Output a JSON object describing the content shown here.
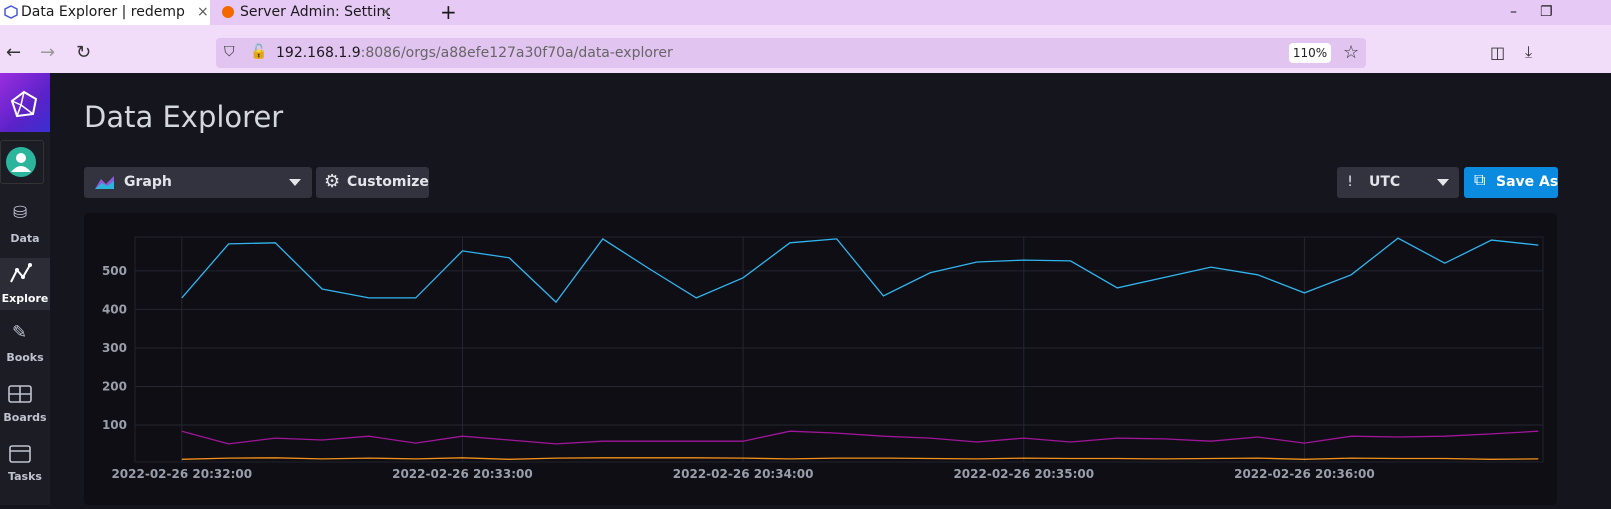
{
  "browser": {
    "tabs": [
      "Data Explorer | redemp",
      "Server Admin: Settings -"
    ],
    "url_host": "192.168.1.9",
    "url_path": ":8086/orgs/a88efe127a30f70a/data-explorer",
    "zoom": "110%"
  },
  "sidebar": {
    "items": [
      "Data",
      "Explore",
      "Books",
      "Boards",
      "Tasks"
    ]
  },
  "header": {
    "title": "Data Explorer"
  },
  "toolbar": {
    "view": "Graph",
    "customize": "Customize",
    "timezone": "UTC",
    "save": "Save As"
  },
  "chart_data": {
    "type": "line",
    "x": [
      "2022-02-26 20:32:00",
      "2022-02-26 20:32:10",
      "2022-02-26 20:32:20",
      "2022-02-26 20:32:30",
      "2022-02-26 20:32:40",
      "2022-02-26 20:32:50",
      "2022-02-26 20:33:00",
      "2022-02-26 20:33:10",
      "2022-02-26 20:33:20",
      "2022-02-26 20:33:30",
      "2022-02-26 20:33:40",
      "2022-02-26 20:33:50",
      "2022-02-26 20:34:00",
      "2022-02-26 20:34:10",
      "2022-02-26 20:34:20",
      "2022-02-26 20:34:30",
      "2022-02-26 20:34:40",
      "2022-02-26 20:34:50",
      "2022-02-26 20:35:00",
      "2022-02-26 20:35:10",
      "2022-02-26 20:35:20",
      "2022-02-26 20:35:30",
      "2022-02-26 20:35:40",
      "2022-02-26 20:35:50",
      "2022-02-26 20:36:00",
      "2022-02-26 20:36:10",
      "2022-02-26 20:36:20",
      "2022-02-26 20:36:30",
      "2022-02-26 20:36:40",
      "2022-02-26 20:36:50"
    ],
    "series": [
      {
        "color": "#31b5f0",
        "values": [
          430,
          570,
          573,
          453,
          430,
          430,
          552,
          534,
          419,
          583,
          505,
          430,
          482,
          573,
          583,
          435,
          495,
          523,
          528,
          526,
          456,
          483,
          510,
          490,
          443,
          490,
          585,
          520,
          580,
          567
        ]
      },
      {
        "color": "#a2159c",
        "values": [
          84,
          51,
          66,
          61,
          71,
          53,
          71,
          61,
          51,
          58,
          58,
          58,
          58,
          84,
          79,
          71,
          66,
          56,
          66,
          56,
          66,
          64,
          58,
          69,
          53,
          71,
          69,
          71,
          77,
          84
        ]
      },
      {
        "color": "#f3901a",
        "values": [
          11,
          14,
          15,
          12,
          14,
          12,
          15,
          11,
          14,
          15,
          15,
          15,
          14,
          12,
          14,
          14,
          13,
          12,
          14,
          13,
          13,
          12,
          13,
          14,
          11,
          14,
          13,
          13,
          11,
          12
        ]
      }
    ],
    "xlim": [
      "2022-02-26 20:31:50",
      "2022-02-26 20:36:51"
    ],
    "xticks": [
      "2022-02-26 20:32:00",
      "2022-02-26 20:33:00",
      "2022-02-26 20:34:00",
      "2022-02-26 20:35:00",
      "2022-02-26 20:36:00"
    ],
    "ylim": [
      4,
      588
    ],
    "yticks": [
      100,
      200,
      300,
      400,
      500
    ],
    "grid": true
  }
}
